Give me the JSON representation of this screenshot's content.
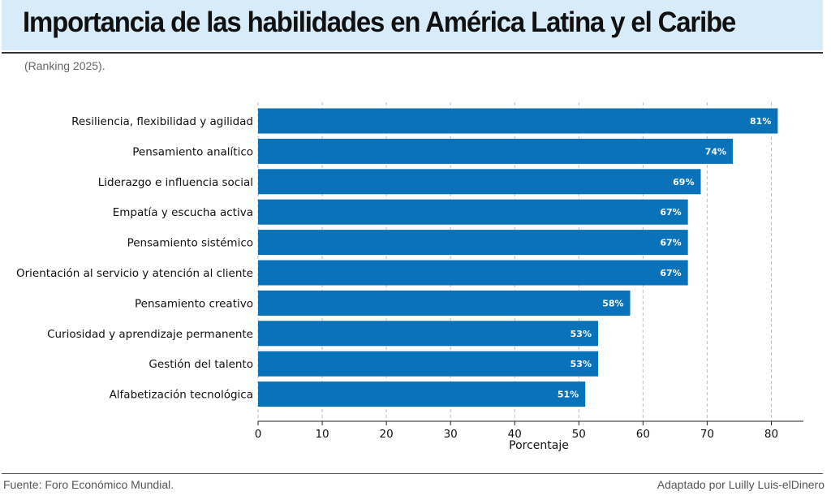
{
  "header": {
    "title": "Importancia de las habilidades en América Latina y el Caribe",
    "subtitle": "(Ranking 2025)."
  },
  "footer": {
    "source": "Fuente: Foro Económico Mundial.",
    "credit": "Adaptado por Luilly Luis-elDinero"
  },
  "colors": {
    "bar": "#0a72b8",
    "grid": "#bcbcbc",
    "header_band": "#d7ebf9"
  },
  "chart_data": {
    "type": "bar",
    "orientation": "horizontal",
    "categories": [
      "Resiliencia, flexibilidad y agilidad",
      "Pensamiento analítico",
      "Liderazgo e influencia social",
      "Empatía y escucha activa",
      "Pensamiento sistémico",
      "Orientación al servicio y atención al cliente",
      "Pensamiento creativo",
      "Curiosidad y aprendizaje permanente",
      "Gestión del talento",
      "Alfabetización tecnológica"
    ],
    "values": [
      81,
      74,
      69,
      67,
      67,
      67,
      58,
      53,
      53,
      51
    ],
    "value_labels": [
      "81%",
      "74%",
      "69%",
      "67%",
      "67%",
      "67%",
      "58%",
      "53%",
      "53%",
      "51%"
    ],
    "xlabel": "Porcentaje",
    "ylabel": "",
    "xlim": [
      0,
      85
    ],
    "xticks": [
      0,
      10,
      20,
      30,
      40,
      50,
      60,
      70,
      80
    ],
    "grid": "x-dashed"
  }
}
